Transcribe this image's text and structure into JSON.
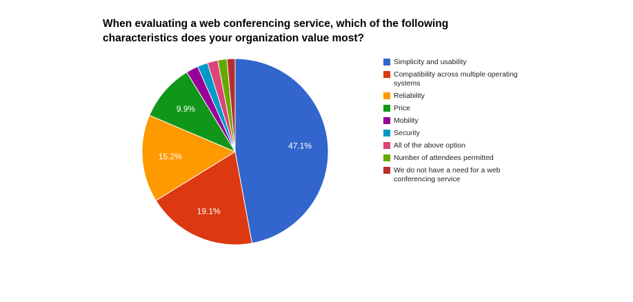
{
  "chart_data": {
    "type": "pie",
    "title": "When evaluating a web conferencing service, which of the following characteristics does your organization value most?",
    "legend_position": "right",
    "slices": [
      {
        "label": "Simplicity and usability",
        "value": 47.1,
        "color": "#3366cc",
        "data_label": "47.1%"
      },
      {
        "label": "Compatibility across multiple operating systems",
        "value": 19.1,
        "color": "#dc3912",
        "data_label": "19.1%"
      },
      {
        "label": "Reliability",
        "value": 15.2,
        "color": "#ff9900",
        "data_label": "15.2%"
      },
      {
        "label": "Price",
        "value": 9.9,
        "color": "#109618",
        "data_label": "9.9%"
      },
      {
        "label": "Mobility",
        "value": 2.1,
        "color": "#990099",
        "data_label": ""
      },
      {
        "label": "Security",
        "value": 1.8,
        "color": "#0099c6",
        "data_label": ""
      },
      {
        "label": "All of the above option",
        "value": 1.8,
        "color": "#dd4477",
        "data_label": ""
      },
      {
        "label": "Number of attendees permitted",
        "value": 1.6,
        "color": "#66aa00",
        "data_label": ""
      },
      {
        "label": "We do not have a need for a web conferencing service",
        "value": 1.4,
        "color": "#b82e2e",
        "data_label": ""
      }
    ]
  }
}
